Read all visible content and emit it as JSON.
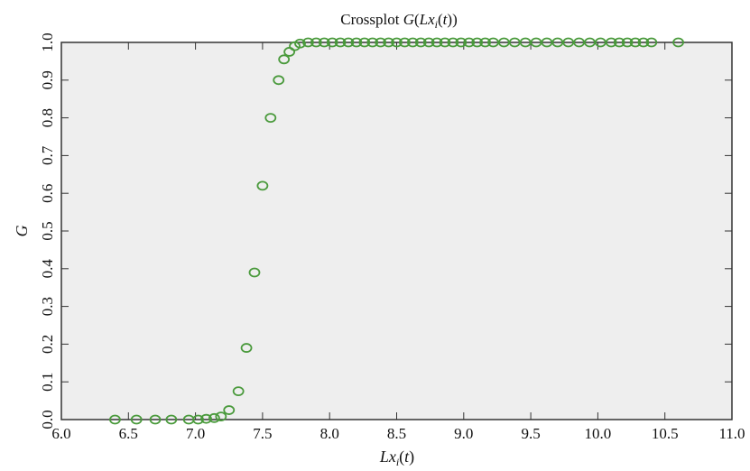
{
  "chart_data": {
    "type": "scatter",
    "title": "Crossplot G(Lx_i(t))",
    "title_parts": [
      "Crossplot ",
      "G",
      "(",
      "Lx",
      "i",
      "(",
      "t",
      "))"
    ],
    "xlabel": "Lx_i(t)",
    "xlabel_parts": [
      "Lx",
      "i",
      "(",
      "t",
      ")"
    ],
    "ylabel": "G",
    "xlim": [
      6.0,
      11.0
    ],
    "ylim": [
      0.0,
      1.0
    ],
    "xticks": [
      "6.0",
      "6.5",
      "7.0",
      "7.5",
      "8.0",
      "8.5",
      "9.0",
      "9.5",
      "10.0",
      "10.5",
      "11.0"
    ],
    "yticks": [
      "0.0",
      "0.1",
      "0.2",
      "0.3",
      "0.4",
      "0.5",
      "0.6",
      "0.7",
      "0.8",
      "0.9",
      "1.0"
    ],
    "grid": false,
    "plot_background": "#eeeeee",
    "marker": "open-circle",
    "marker_color": "#4a9a3c",
    "points": [
      {
        "x": 6.4,
        "y": 0.0
      },
      {
        "x": 6.56,
        "y": 0.0
      },
      {
        "x": 6.7,
        "y": 0.0
      },
      {
        "x": 6.82,
        "y": 0.0
      },
      {
        "x": 6.95,
        "y": 0.0
      },
      {
        "x": 7.02,
        "y": 0.0
      },
      {
        "x": 7.08,
        "y": 0.002
      },
      {
        "x": 7.14,
        "y": 0.004
      },
      {
        "x": 7.19,
        "y": 0.008
      },
      {
        "x": 7.25,
        "y": 0.025
      },
      {
        "x": 7.32,
        "y": 0.075
      },
      {
        "x": 7.38,
        "y": 0.19
      },
      {
        "x": 7.44,
        "y": 0.39
      },
      {
        "x": 7.5,
        "y": 0.62
      },
      {
        "x": 7.56,
        "y": 0.8
      },
      {
        "x": 7.62,
        "y": 0.9
      },
      {
        "x": 7.66,
        "y": 0.955
      },
      {
        "x": 7.7,
        "y": 0.975
      },
      {
        "x": 7.74,
        "y": 0.99
      },
      {
        "x": 7.78,
        "y": 0.997
      },
      {
        "x": 7.84,
        "y": 1.0
      },
      {
        "x": 7.9,
        "y": 1.0
      },
      {
        "x": 7.96,
        "y": 1.0
      },
      {
        "x": 8.02,
        "y": 1.0
      },
      {
        "x": 8.08,
        "y": 1.0
      },
      {
        "x": 8.14,
        "y": 1.0
      },
      {
        "x": 8.2,
        "y": 1.0
      },
      {
        "x": 8.26,
        "y": 1.0
      },
      {
        "x": 8.32,
        "y": 1.0
      },
      {
        "x": 8.38,
        "y": 1.0
      },
      {
        "x": 8.44,
        "y": 1.0
      },
      {
        "x": 8.5,
        "y": 1.0
      },
      {
        "x": 8.56,
        "y": 1.0
      },
      {
        "x": 8.62,
        "y": 1.0
      },
      {
        "x": 8.68,
        "y": 1.0
      },
      {
        "x": 8.74,
        "y": 1.0
      },
      {
        "x": 8.8,
        "y": 1.0
      },
      {
        "x": 8.86,
        "y": 1.0
      },
      {
        "x": 8.92,
        "y": 1.0
      },
      {
        "x": 8.98,
        "y": 1.0
      },
      {
        "x": 9.04,
        "y": 1.0
      },
      {
        "x": 9.1,
        "y": 1.0
      },
      {
        "x": 9.16,
        "y": 1.0
      },
      {
        "x": 9.22,
        "y": 1.0
      },
      {
        "x": 9.3,
        "y": 1.0
      },
      {
        "x": 9.38,
        "y": 1.0
      },
      {
        "x": 9.46,
        "y": 1.0
      },
      {
        "x": 9.54,
        "y": 1.0
      },
      {
        "x": 9.62,
        "y": 1.0
      },
      {
        "x": 9.7,
        "y": 1.0
      },
      {
        "x": 9.78,
        "y": 1.0
      },
      {
        "x": 9.86,
        "y": 1.0
      },
      {
        "x": 9.94,
        "y": 1.0
      },
      {
        "x": 10.02,
        "y": 1.0
      },
      {
        "x": 10.1,
        "y": 1.0
      },
      {
        "x": 10.16,
        "y": 1.0
      },
      {
        "x": 10.22,
        "y": 1.0
      },
      {
        "x": 10.28,
        "y": 1.0
      },
      {
        "x": 10.34,
        "y": 1.0
      },
      {
        "x": 10.4,
        "y": 1.0
      },
      {
        "x": 10.6,
        "y": 1.0
      }
    ]
  }
}
